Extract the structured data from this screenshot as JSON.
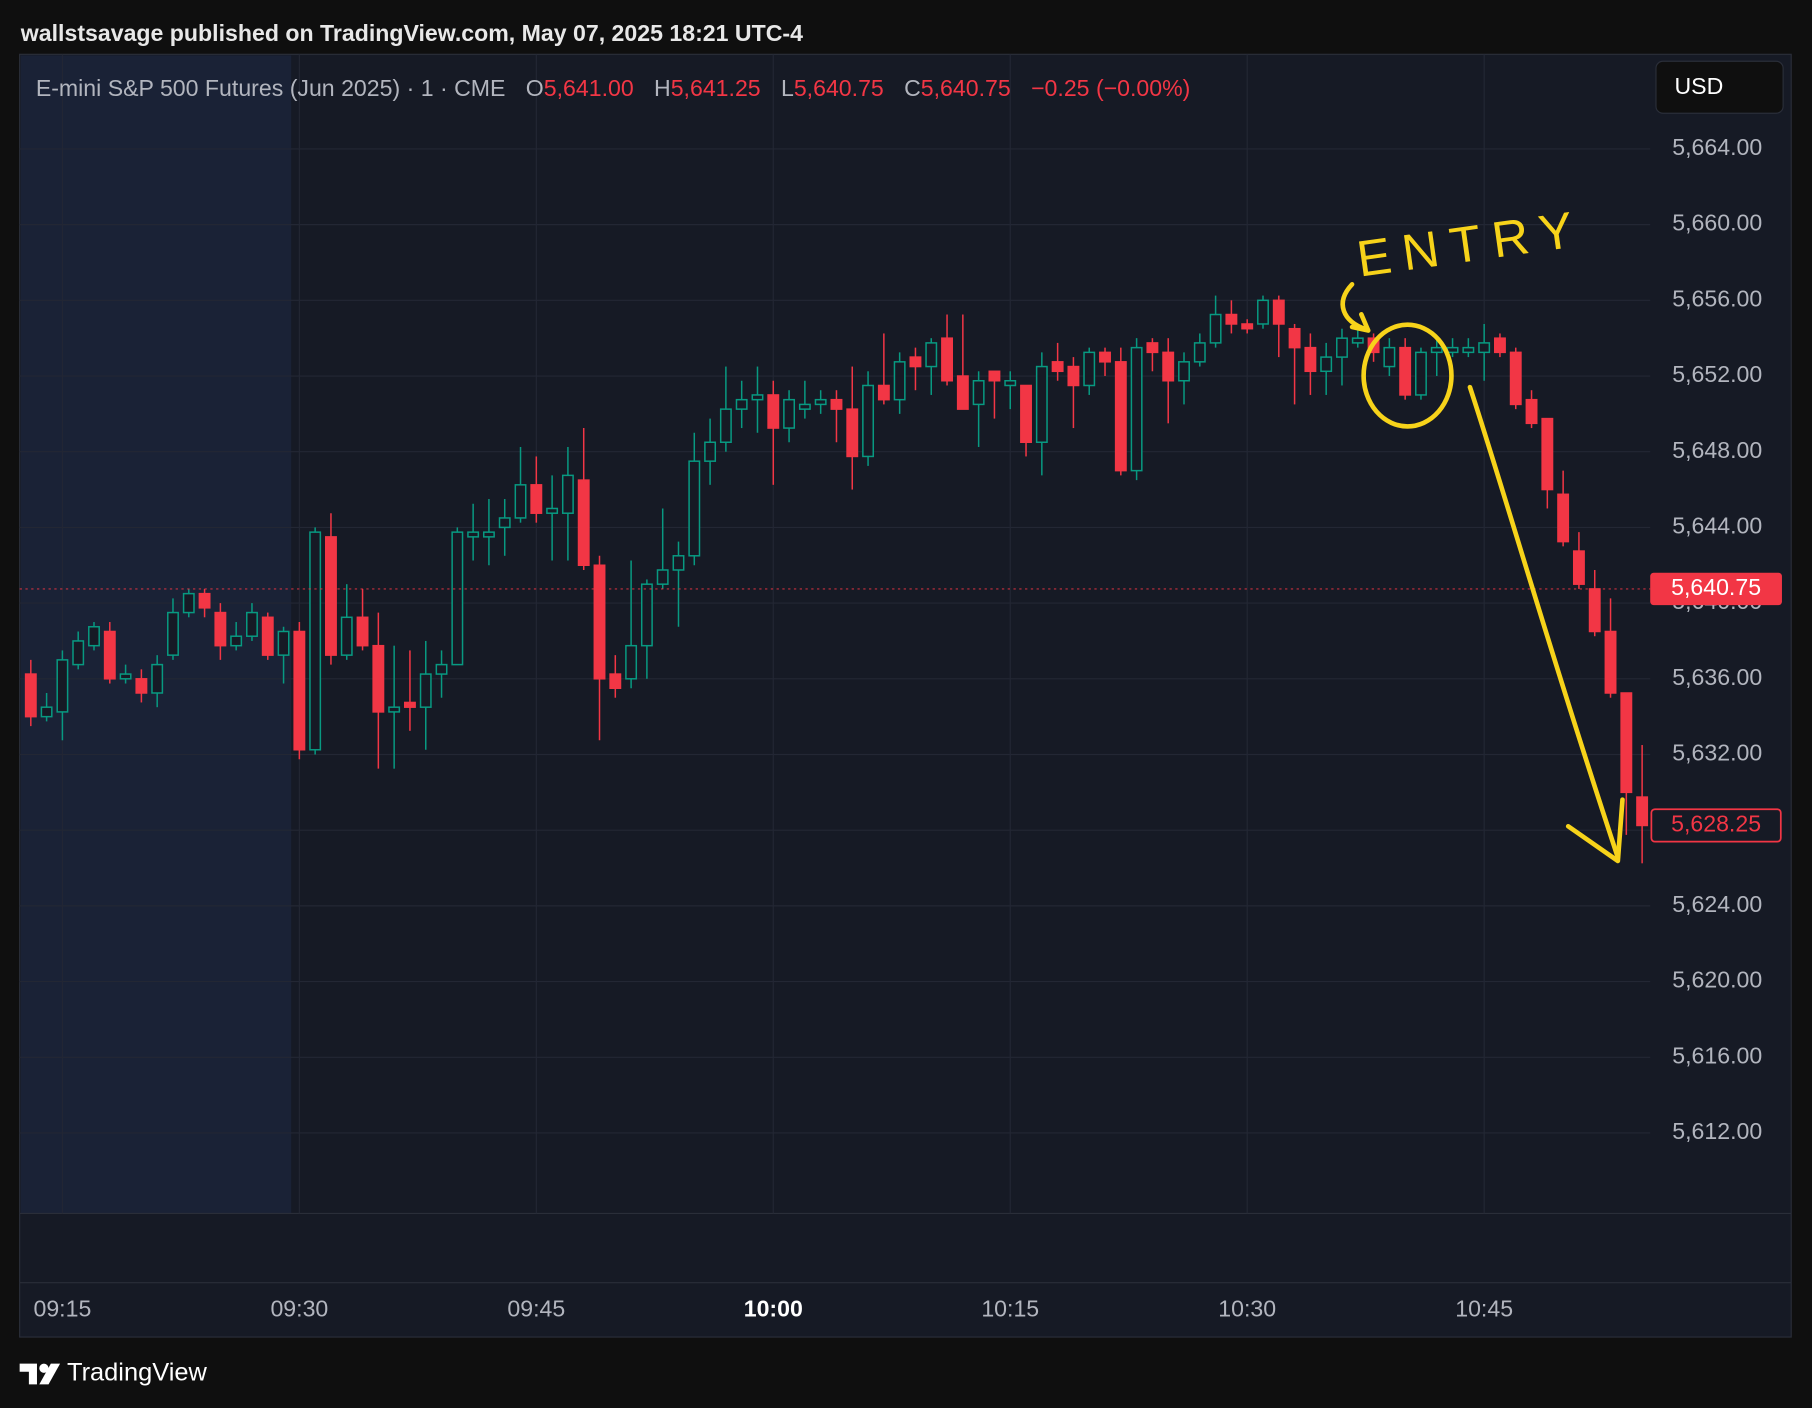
{
  "publisher": "wallstsavage published on TradingView.com, May 07, 2025 18:21 UTC-4",
  "header": {
    "symbol": "E-mini S&P 500 Futures (Jun 2025) · 1 · CME",
    "ohlc": [
      {
        "label": "O",
        "value": "5,641.00"
      },
      {
        "label": "H",
        "value": "5,641.25"
      },
      {
        "label": "L",
        "value": "5,640.75"
      },
      {
        "label": "C",
        "value": "5,640.75"
      }
    ],
    "change": "−0.25 (−0.00%)"
  },
  "currency": "USD",
  "footer": {
    "brand": "TradingView"
  },
  "chart_data": {
    "type": "candlestick",
    "up_color": "#089981",
    "down_color": "#f23645",
    "hollow_up": true,
    "grid": true,
    "x": [
      "09:13",
      "09:14",
      "09:15",
      "09:16",
      "09:17",
      "09:18",
      "09:19",
      "09:20",
      "09:21",
      "09:22",
      "09:23",
      "09:24",
      "09:25",
      "09:26",
      "09:27",
      "09:28",
      "09:29",
      "09:30",
      "09:31",
      "09:32",
      "09:33",
      "09:34",
      "09:35",
      "09:36",
      "09:37",
      "09:38",
      "09:39",
      "09:40",
      "09:41",
      "09:42",
      "09:43",
      "09:44",
      "09:45",
      "09:46",
      "09:47",
      "09:48",
      "09:49",
      "09:50",
      "09:51",
      "09:52",
      "09:53",
      "09:54",
      "09:55",
      "09:56",
      "09:57",
      "09:58",
      "09:59",
      "10:00",
      "10:01",
      "10:02",
      "10:03",
      "10:04",
      "10:05",
      "10:06",
      "10:07",
      "10:08",
      "10:09",
      "10:10",
      "10:11",
      "10:12",
      "10:13",
      "10:14",
      "10:15",
      "10:16",
      "10:17",
      "10:18",
      "10:19",
      "10:20",
      "10:21",
      "10:22",
      "10:23",
      "10:24",
      "10:25",
      "10:26",
      "10:27",
      "10:28",
      "10:29",
      "10:30",
      "10:31",
      "10:32",
      "10:33",
      "10:34",
      "10:35",
      "10:36",
      "10:37",
      "10:38",
      "10:39",
      "10:40",
      "10:41",
      "10:42",
      "10:43",
      "10:44",
      "10:45",
      "10:46",
      "10:47",
      "10:48",
      "10:49",
      "10:50",
      "10:51",
      "10:52",
      "10:53",
      "10:54",
      "10:55"
    ],
    "open": [
      5636.25,
      5634,
      5634.25,
      5636.75,
      5637.75,
      5638.5,
      5636,
      5636,
      5635.25,
      5637.25,
      5639.5,
      5640.5,
      5639.5,
      5637.75,
      5638.25,
      5639.25,
      5637.25,
      5638.5,
      5632.25,
      5643.5,
      5637.25,
      5639.25,
      5637.75,
      5634.25,
      5634.75,
      5634.5,
      5636.25,
      5636.75,
      5643.5,
      5643.5,
      5644,
      5644.5,
      5646.25,
      5644.75,
      5644.75,
      5646.5,
      5642,
      5636.25,
      5636,
      5637.75,
      5641,
      5641.75,
      5642.5,
      5647.5,
      5648.5,
      5650.25,
      5650.75,
      5651,
      5649.25,
      5650.25,
      5650.5,
      5650.75,
      5650.25,
      5647.75,
      5651.5,
      5650.75,
      5653,
      5652.5,
      5654,
      5652,
      5650.5,
      5652.25,
      5651.5,
      5651.5,
      5648.5,
      5652.75,
      5652.5,
      5651.5,
      5653.25,
      5652.75,
      5647,
      5653.75,
      5653.25,
      5651.75,
      5652.75,
      5653.75,
      5655.25,
      5654.75,
      5654.75,
      5656,
      5654.5,
      5653.5,
      5652.25,
      5653,
      5653.75,
      5654,
      5652.5,
      5653.5,
      5651,
      5653.25,
      5653.25,
      5653.25,
      5653.25,
      5654,
      5653.25,
      5650.75,
      5649.75,
      5645.75,
      5642.75,
      5640.75,
      5638.5,
      5635.25,
      5629.75
    ],
    "high": [
      5637,
      5635.25,
      5637.5,
      5638.5,
      5639,
      5639,
      5636.75,
      5636.5,
      5637.25,
      5640.25,
      5640.75,
      5640.75,
      5640,
      5639,
      5640,
      5639.5,
      5638.75,
      5639,
      5644,
      5644.75,
      5641,
      5640.75,
      5639.5,
      5637.75,
      5637.5,
      5638,
      5637.5,
      5644,
      5645.25,
      5645.5,
      5645.5,
      5648.25,
      5647.75,
      5646.75,
      5648.25,
      5649.25,
      5642.5,
      5637.25,
      5642.25,
      5641.25,
      5645,
      5643.25,
      5649,
      5649.75,
      5652.5,
      5651.75,
      5652.5,
      5651.75,
      5651.25,
      5651.75,
      5651.25,
      5651.25,
      5652.5,
      5652.25,
      5654.25,
      5653.25,
      5653.5,
      5654,
      5655.25,
      5655.25,
      5652.25,
      5652.25,
      5652.25,
      5651.5,
      5653.25,
      5653.75,
      5653,
      5653.5,
      5653.5,
      5653.5,
      5654,
      5654,
      5654,
      5653.25,
      5654.25,
      5656.25,
      5656,
      5655,
      5656.25,
      5656.25,
      5654.75,
      5654.25,
      5653.75,
      5654.5,
      5654.5,
      5654.25,
      5654,
      5654,
      5653.5,
      5654,
      5654,
      5654,
      5654.75,
      5654.25,
      5653.5,
      5651.25,
      5649.75,
      5647,
      5643.75,
      5641.75,
      5640.25,
      5635.25,
      5632.5
    ],
    "low": [
      5633.5,
      5633.75,
      5632.75,
      5636.5,
      5637.5,
      5635.75,
      5635.75,
      5634.75,
      5634.5,
      5637,
      5639.25,
      5639.25,
      5637,
      5637.5,
      5638,
      5637,
      5635.75,
      5631.75,
      5632,
      5636.75,
      5637,
      5637.5,
      5631.25,
      5631.25,
      5633.25,
      5632.25,
      5635,
      5636.75,
      5642.25,
      5642,
      5642.5,
      5644.25,
      5644.25,
      5642.25,
      5642.25,
      5641.75,
      5632.75,
      5635,
      5635.5,
      5636,
      5640.75,
      5638.75,
      5642,
      5646.25,
      5648,
      5649.25,
      5649,
      5646.25,
      5648.5,
      5649.75,
      5650,
      5648.5,
      5646,
      5647.25,
      5650.5,
      5650,
      5651.25,
      5651,
      5651.5,
      5650.25,
      5648.25,
      5649.75,
      5650.25,
      5647.75,
      5646.75,
      5651.75,
      5649.25,
      5651,
      5652,
      5646.75,
      5646.5,
      5652.25,
      5649.5,
      5650.5,
      5652.5,
      5653.5,
      5654.25,
      5654.25,
      5654.5,
      5653,
      5650.5,
      5651,
      5651,
      5651.5,
      5653.5,
      5652.75,
      5652,
      5650.75,
      5650.75,
      5652,
      5653,
      5653,
      5651.75,
      5653,
      5650.25,
      5649.25,
      5645,
      5643,
      5640.75,
      5638.25,
      5635,
      5627.75,
      5626.25
    ],
    "close": [
      5634,
      5634.5,
      5637,
      5638,
      5638.75,
      5636,
      5636.25,
      5635.25,
      5636.75,
      5639.5,
      5640.5,
      5639.75,
      5637.75,
      5638.25,
      5639.5,
      5637.25,
      5638.5,
      5632.25,
      5643.75,
      5637.25,
      5639.25,
      5637.75,
      5634.25,
      5634.5,
      5634.5,
      5636.25,
      5636.75,
      5643.75,
      5643.75,
      5643.75,
      5644.5,
      5646.25,
      5644.75,
      5645,
      5646.75,
      5642,
      5636,
      5635.5,
      5637.75,
      5641,
      5641.75,
      5642.5,
      5647.5,
      5648.5,
      5650.25,
      5650.75,
      5651,
      5649.25,
      5650.75,
      5650.5,
      5650.75,
      5650.25,
      5647.75,
      5651.5,
      5650.75,
      5652.75,
      5652.5,
      5653.75,
      5651.75,
      5650.25,
      5651.75,
      5651.75,
      5651.75,
      5648.5,
      5652.5,
      5652.25,
      5651.5,
      5653.25,
      5652.75,
      5647,
      5653.5,
      5653.25,
      5651.75,
      5652.75,
      5653.75,
      5655.25,
      5654.75,
      5654.5,
      5656,
      5654.75,
      5653.5,
      5652.25,
      5653,
      5654,
      5654,
      5653.25,
      5653.5,
      5651,
      5653.25,
      5653.5,
      5653.5,
      5653.5,
      5653.75,
      5653.25,
      5650.5,
      5649.5,
      5646,
      5643.25,
      5641,
      5638.5,
      5635.25,
      5630,
      5628.25
    ],
    "ylim": [
      5607.75,
      5669
    ],
    "yticks": [
      {
        "value": 5612,
        "label": "5,612.00"
      },
      {
        "value": 5616,
        "label": "5,616.00"
      },
      {
        "value": 5620,
        "label": "5,620.00"
      },
      {
        "value": 5624,
        "label": "5,624.00"
      },
      {
        "value": 5628,
        "label": "5,628.00"
      },
      {
        "value": 5632,
        "label": "5,632.00"
      },
      {
        "value": 5636,
        "label": "5,636.00"
      },
      {
        "value": 5640,
        "label": "5,640.00"
      },
      {
        "value": 5644,
        "label": "5,644.00"
      },
      {
        "value": 5648,
        "label": "5,648.00"
      },
      {
        "value": 5652,
        "label": "5,652.00"
      },
      {
        "value": 5656,
        "label": "5,656.00"
      },
      {
        "value": 5660,
        "label": "5,660.00"
      },
      {
        "value": 5664,
        "label": "5,664.00"
      }
    ],
    "xticks": [
      "09:15",
      "09:30",
      "09:45",
      "10:00",
      "10:15",
      "10:30",
      "10:45"
    ],
    "xtick_bold_index": 3,
    "crosshair_price": {
      "value": 5640.75,
      "label": "5,640.75"
    },
    "last_price": {
      "value": 5628.25,
      "label": "5,628.25"
    },
    "annotations": [
      {
        "text": "ENTRY"
      }
    ]
  }
}
